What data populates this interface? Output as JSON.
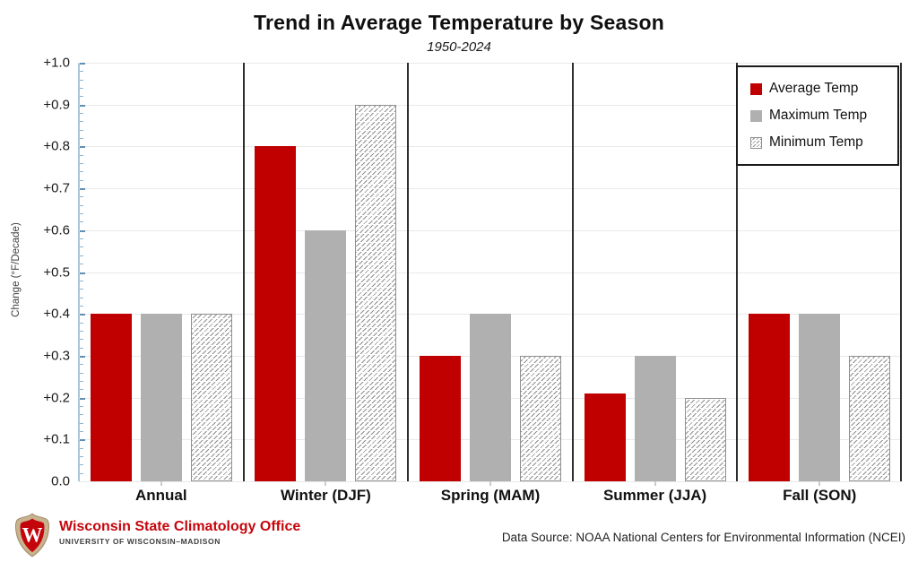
{
  "header": {
    "title": "Trend in Average Temperature by Season",
    "subtitle": "1950-2024"
  },
  "chart_data": {
    "type": "bar",
    "categories": [
      "Annual",
      "Winter (DJF)",
      "Spring (MAM)",
      "Summer (JJA)",
      "Fall (SON)"
    ],
    "series": [
      {
        "name": "Average Temp",
        "style": "avg",
        "values": [
          0.4,
          0.8,
          0.3,
          0.21,
          0.4
        ]
      },
      {
        "name": "Maximum Temp",
        "style": "max",
        "values": [
          0.4,
          0.6,
          0.4,
          0.3,
          0.4
        ]
      },
      {
        "name": "Minimum Temp",
        "style": "min",
        "values": [
          0.4,
          0.9,
          0.3,
          0.2,
          0.3
        ]
      }
    ],
    "ylabel": "Change (°F/Decade)",
    "ylim": [
      0.0,
      1.0
    ],
    "ytick_step": 0.1,
    "minor_tick_step": 0.02,
    "ytick_labels": [
      "0.0",
      "+0.1",
      "+0.2",
      "+0.3",
      "+0.4",
      "+0.5",
      "+0.6",
      "+0.7",
      "+0.8",
      "+0.9",
      "+1.0"
    ],
    "grid": true,
    "legend_position": "top-right",
    "colors": {
      "average_temp": "#c00000",
      "maximum_temp": "#b0b0b0",
      "hatch": "#8f8f8f",
      "axis_line": "#a9c6da",
      "tick": "#5f8fb4",
      "gridline": "#e9e9e9",
      "panel_divider": "#2e2e2e"
    }
  },
  "footer": {
    "org_name": "Wisconsin State Climatology Office",
    "org_subname": "UNIVERSITY OF WISCONSIN–MADISON",
    "logo": "uw-madison-crest",
    "data_source": "Data Source: NOAA National Centers for Environmental Information (NCEI)"
  }
}
